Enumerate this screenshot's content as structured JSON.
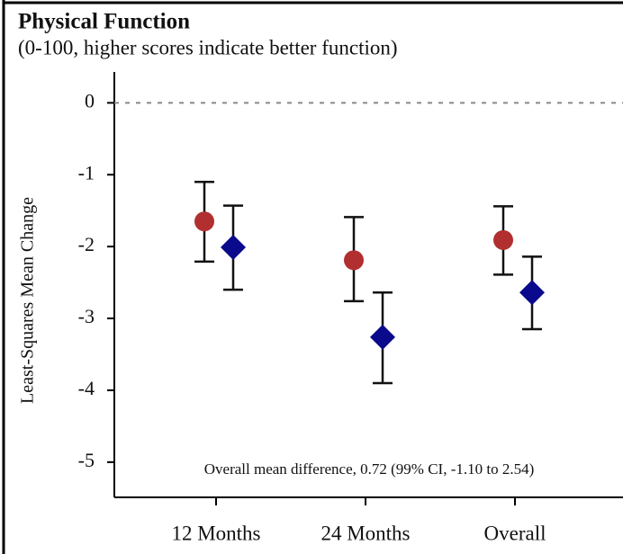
{
  "chart_data": {
    "type": "errorbar-scatter",
    "title": "Physical Function",
    "subtitle": "(0-100, higher scores indicate better function)",
    "y_label": "Least-Squares Mean Change",
    "annotation": "Overall mean difference, 0.72 (99% CI, -1.10 to 2.54)",
    "categories": [
      "12 Months",
      "24 Months",
      "Overall"
    ],
    "series": [
      {
        "color": "#b22f2f",
        "marker": "circle",
        "values": [
          -1.65,
          -2.19,
          -1.91
        ],
        "lower": [
          -2.21,
          -2.76,
          -2.39
        ],
        "upper": [
          -1.1,
          -1.59,
          -1.44
        ]
      },
      {
        "color": "#0a0a8c",
        "marker": "diamond",
        "values": [
          -2.01,
          -3.26,
          -2.64
        ],
        "lower": [
          -2.6,
          -3.9,
          -3.15
        ],
        "upper": [
          -1.43,
          -2.64,
          -2.14
        ]
      }
    ],
    "ylim": [
      -5.49,
      0.43
    ],
    "yticks": [
      0,
      -1,
      -2,
      -3,
      -4,
      -5
    ]
  }
}
